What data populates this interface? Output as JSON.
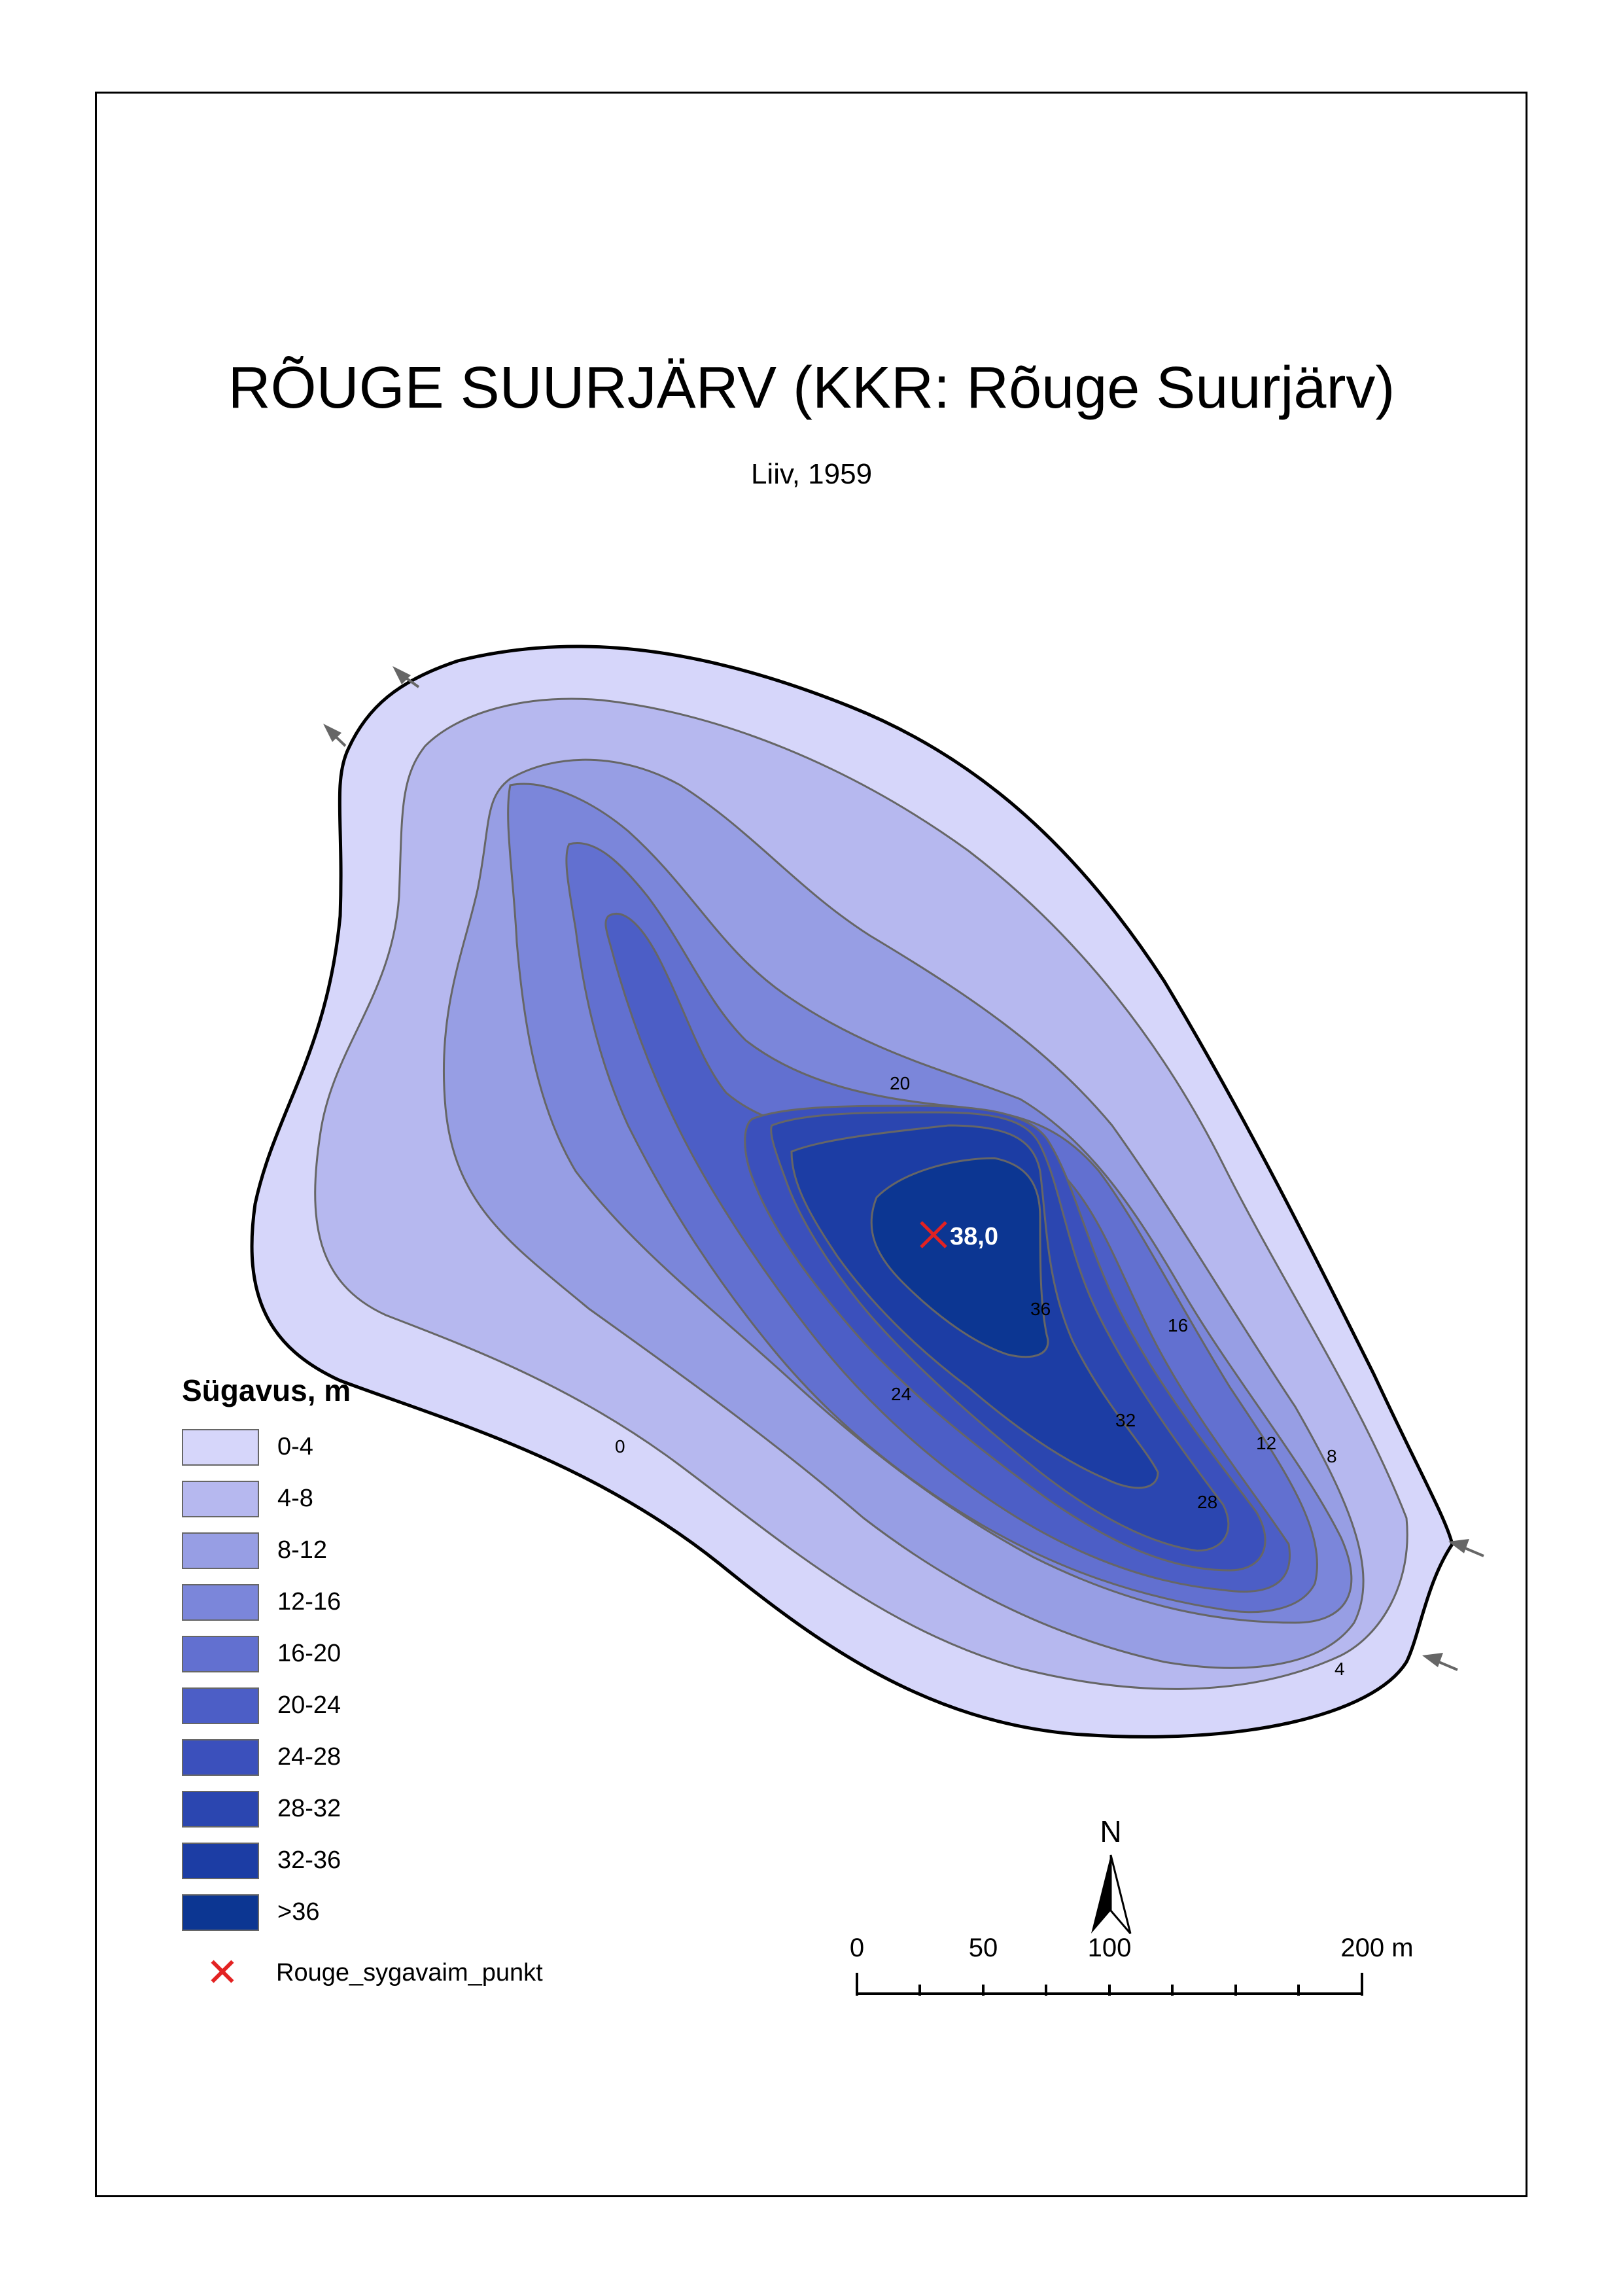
{
  "title": "RÕUGE SUURJÄRV (KKR: Rõuge Suurjärv)",
  "subtitle": "Liiv, 1959",
  "deepest_point": {
    "label": "38,0",
    "marker_color": "#e32222"
  },
  "contour_labels": [
    "0",
    "4",
    "8",
    "12",
    "16",
    "20",
    "24",
    "28",
    "32",
    "36"
  ],
  "legend": {
    "title": "Sügavus, m",
    "classes": [
      {
        "label": "0-4",
        "color": "#d6d6fa"
      },
      {
        "label": "4-8",
        "color": "#b6b8ef"
      },
      {
        "label": "8-12",
        "color": "#979ee4"
      },
      {
        "label": "12-16",
        "color": "#7b86da"
      },
      {
        "label": "16-20",
        "color": "#6270d0"
      },
      {
        "label": "20-24",
        "color": "#4c5ec6"
      },
      {
        "label": "24-28",
        "color": "#3b50bc"
      },
      {
        "label": "28-32",
        "color": "#2b46b0"
      },
      {
        "label": "32-36",
        "color": "#1c3da4"
      },
      {
        "label": ">36",
        "color": "#0c3692"
      }
    ],
    "point_label": "Rouge_sygavaim_punkt"
  },
  "north_arrow": {
    "label": "N"
  },
  "scale_bar": {
    "labels": [
      "0",
      "50",
      "100",
      "200 m"
    ]
  }
}
